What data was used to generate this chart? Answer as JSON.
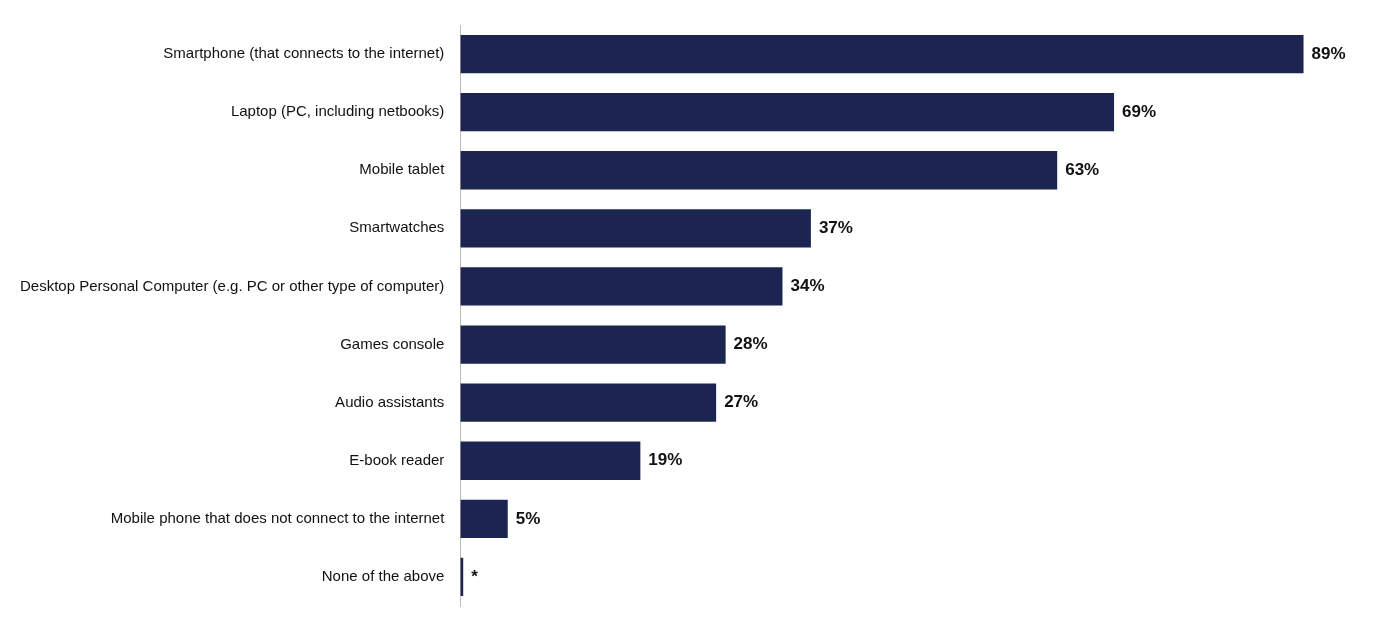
{
  "chart_data": {
    "type": "bar",
    "orientation": "horizontal",
    "categories": [
      "Smartphone (that connects to the internet)",
      "Laptop (PC, including netbooks)",
      "Mobile tablet",
      "Smartwatches",
      "Desktop Personal Computer (e.g. PC or other type of computer)",
      "Games console",
      "Audio assistants",
      "E-book reader",
      "Mobile phone that does not connect to the internet",
      "None of the above"
    ],
    "values": [
      89,
      69,
      63,
      37,
      34,
      28,
      27,
      19,
      5,
      0.3
    ],
    "value_labels": [
      "89%",
      "69%",
      "63%",
      "37%",
      "34%",
      "28%",
      "27%",
      "19%",
      "5%",
      "*"
    ],
    "color": "#1c2451",
    "legend": false,
    "tick_labels": "y"
  }
}
